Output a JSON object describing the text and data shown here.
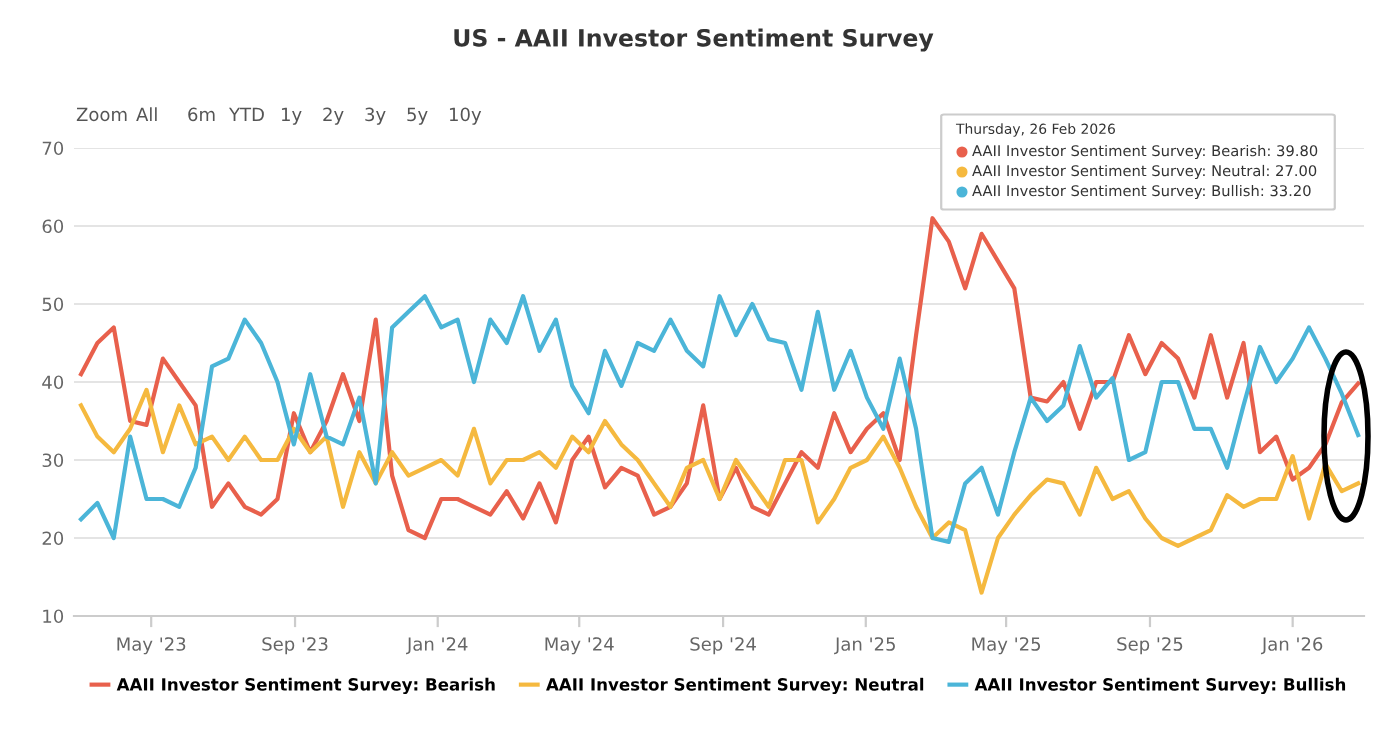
{
  "chart_data": {
    "type": "line",
    "title": "US - AAII Investor Sentiment Survey",
    "annotations": [
      "Zoom",
      "All",
      "6m",
      "YTD",
      "1y",
      "2y",
      "3y",
      "5y",
      "10y",
      "Thursday, 26 Feb 2026",
      "AAII Investor Sentiment Survey: Bearish: 39.80",
      "AAII Investor Sentiment Survey: Neutral: 27.00",
      "AAII Investor Sentiment Survey: Bullish: 33.20"
    ],
    "x": [
      "2023-03-02",
      "2023-03-16",
      "2023-03-30",
      "2023-04-13",
      "2023-04-27",
      "2023-05-11",
      "2023-05-25",
      "2023-06-08",
      "2023-06-22",
      "2023-07-06",
      "2023-07-20",
      "2023-08-03",
      "2023-08-17",
      "2023-08-31",
      "2023-09-14",
      "2023-09-28",
      "2023-10-12",
      "2023-10-26",
      "2023-11-09",
      "2023-11-23",
      "2023-12-07",
      "2023-12-21",
      "2024-01-04",
      "2024-01-18",
      "2024-02-01",
      "2024-02-15",
      "2024-02-29",
      "2024-03-14",
      "2024-03-28",
      "2024-04-11",
      "2024-04-25",
      "2024-05-09",
      "2024-05-23",
      "2024-06-06",
      "2024-06-20",
      "2024-07-04",
      "2024-07-18",
      "2024-08-01",
      "2024-08-15",
      "2024-08-29",
      "2024-09-12",
      "2024-09-26",
      "2024-10-10",
      "2024-10-24",
      "2024-11-07",
      "2024-11-21",
      "2024-12-05",
      "2024-12-19",
      "2025-01-02",
      "2025-01-16",
      "2025-01-30",
      "2025-02-13",
      "2025-02-27",
      "2025-03-13",
      "2025-03-27",
      "2025-04-10",
      "2025-04-24",
      "2025-05-08",
      "2025-05-22",
      "2025-06-05",
      "2025-06-19",
      "2025-07-03",
      "2025-07-17",
      "2025-07-31",
      "2025-08-14",
      "2025-08-28",
      "2025-09-11",
      "2025-09-25",
      "2025-10-09",
      "2025-10-23",
      "2025-11-06",
      "2025-11-20",
      "2025-12-04",
      "2025-12-18",
      "2026-01-01",
      "2026-01-15",
      "2026-01-29",
      "2026-02-12",
      "2026-02-26"
    ],
    "series": [
      {
        "name": "AAII Investor Sentiment Survey: Bearish",
        "color": "#e8604c",
        "values": [
          41,
          45,
          47,
          35,
          34.5,
          43,
          40,
          37,
          24,
          27,
          24,
          23,
          25,
          36,
          31,
          35,
          41,
          35,
          48,
          28,
          21,
          20,
          25,
          25,
          24,
          23,
          26,
          22.5,
          27,
          22,
          30,
          33,
          26.5,
          29,
          28,
          23,
          24,
          27,
          37,
          25,
          29,
          24,
          23,
          27,
          31,
          29,
          36,
          31,
          34,
          36,
          30,
          46,
          61,
          58,
          52,
          59,
          55.5,
          52,
          38,
          37.5,
          40,
          34,
          40,
          40,
          46,
          41,
          45,
          43,
          38,
          46,
          38,
          45,
          31,
          33,
          27.5,
          29,
          32,
          37.4,
          39.8
        ]
      },
      {
        "name": "AAII Investor Sentiment Survey: Neutral",
        "color": "#f5b93f",
        "values": [
          37,
          33,
          31,
          34,
          39,
          31,
          37,
          32,
          33,
          30,
          33,
          30,
          30,
          34,
          31,
          33,
          24,
          31,
          27,
          31,
          28,
          29,
          30,
          28,
          34,
          27,
          30,
          30,
          31,
          29,
          33,
          31,
          35,
          32,
          30,
          27,
          24,
          29,
          30,
          25,
          30,
          27,
          24,
          30,
          30,
          22,
          25,
          29,
          30,
          33,
          29,
          24,
          20,
          22,
          21,
          13,
          20,
          23,
          25.5,
          27.5,
          27,
          23,
          29,
          25,
          26,
          22.5,
          20,
          19,
          20,
          21,
          25.5,
          24,
          25,
          25,
          30.5,
          22.5,
          29.5,
          26,
          27
        ]
      },
      {
        "name": "AAII Investor Sentiment Survey: Bullish",
        "color": "#4bb5d8",
        "values": [
          22.4,
          24.5,
          20,
          33,
          25,
          25,
          24,
          29,
          42,
          43,
          48,
          45,
          40,
          32,
          41,
          33,
          32,
          38,
          27,
          47,
          49,
          51,
          47,
          48,
          40,
          48,
          45,
          51,
          44,
          48,
          39.5,
          36,
          44,
          39.5,
          45,
          44,
          48,
          44,
          42,
          51,
          46,
          50,
          45.5,
          45,
          39,
          49,
          39,
          44,
          38,
          34,
          43,
          34,
          20,
          19.5,
          27,
          29,
          23,
          31,
          38,
          35,
          37,
          44.6,
          38,
          40.5,
          30,
          31,
          40,
          40,
          34,
          34,
          29,
          37,
          44.5,
          40,
          43,
          47,
          43,
          38.5,
          33.2
        ]
      }
    ],
    "xlim": [
      "2023-02-24",
      "2026-03-03"
    ],
    "xticks": [
      {
        "value": "2023-05-01",
        "label": "May '23"
      },
      {
        "value": "2023-09-01",
        "label": "Sep '23"
      },
      {
        "value": "2024-01-01",
        "label": "Jan '24"
      },
      {
        "value": "2024-05-01",
        "label": "May '24"
      },
      {
        "value": "2024-09-01",
        "label": "Sep '24"
      },
      {
        "value": "2025-01-01",
        "label": "Jan '25"
      },
      {
        "value": "2025-05-01",
        "label": "May '25"
      },
      {
        "value": "2025-09-01",
        "label": "Sep '25"
      },
      {
        "value": "2026-01-01",
        "label": "Jan '26"
      }
    ],
    "ylim": [
      10,
      70
    ],
    "yticks": [
      10,
      20,
      30,
      40,
      50,
      60,
      70
    ],
    "grid": "y",
    "legend": "bottom",
    "marker": "none",
    "line_style": "solid"
  }
}
